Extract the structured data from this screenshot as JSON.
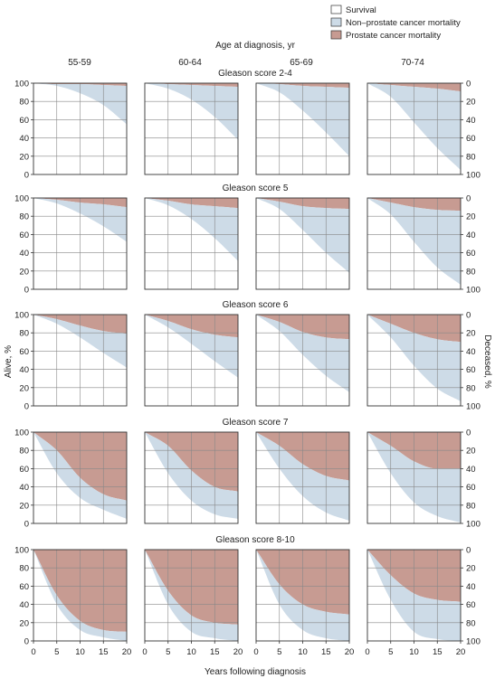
{
  "legend": [
    {
      "label": "Survival",
      "color": "#ffffff"
    },
    {
      "label": "Non–prostate cancer mortality",
      "color": "#cddbe7"
    },
    {
      "label": "Prostate cancer mortality",
      "color": "#c79b92"
    }
  ],
  "column_header": "Age at diagnosis, yr",
  "age_groups": [
    "55-59",
    "60-64",
    "65-69",
    "70-74"
  ],
  "y_left_label": "Alive, %",
  "y_right_label": "Deceased, %",
  "x_label": "Years following diagnosis",
  "row_titles": [
    "Gleason score 2-4",
    "Gleason score 5",
    "Gleason score 6",
    "Gleason score 7",
    "Gleason score 8-10"
  ],
  "colors": {
    "survival": "#ffffff",
    "non_prostate": "#cddbe7",
    "prostate": "#c79b92",
    "grid": "#888888",
    "frame": "#333333"
  },
  "chart_data": {
    "type": "area",
    "layout": "small multiples: rows = Gleason score, columns = age at diagnosis",
    "x": [
      0,
      5,
      10,
      15,
      20
    ],
    "xticks": [
      0,
      5,
      10,
      15,
      20
    ],
    "xlim": [
      0,
      20
    ],
    "yticks_left": [
      0,
      20,
      40,
      60,
      80,
      100
    ],
    "yticks_right": [
      100,
      80,
      60,
      40,
      20,
      0
    ],
    "ylim": [
      0,
      100
    ],
    "grid": true,
    "stacking": "bottom = survival %, middle = non-prostate cancer mortality, top = prostate cancer mortality",
    "panels": [
      {
        "row": "Gleason score 2-4",
        "column": "55-59",
        "survival": [
          100,
          97,
          89,
          76,
          55
        ],
        "alive_or_other_death": [
          100,
          99,
          99,
          98,
          97
        ]
      },
      {
        "row": "Gleason score 2-4",
        "column": "60-64",
        "survival": [
          100,
          94,
          82,
          63,
          38
        ],
        "alive_or_other_death": [
          100,
          99,
          98,
          97,
          96
        ]
      },
      {
        "row": "Gleason score 2-4",
        "column": "65-69",
        "survival": [
          100,
          90,
          70,
          46,
          20
        ],
        "alive_or_other_death": [
          100,
          99,
          97,
          96,
          95
        ]
      },
      {
        "row": "Gleason score 2-4",
        "column": "70-74",
        "survival": [
          100,
          85,
          57,
          29,
          5
        ],
        "alive_or_other_death": [
          100,
          98,
          96,
          94,
          91
        ]
      },
      {
        "row": "Gleason score 5",
        "column": "55-59",
        "survival": [
          100,
          94,
          83,
          69,
          52
        ],
        "alive_or_other_death": [
          100,
          98,
          95,
          93,
          90
        ]
      },
      {
        "row": "Gleason score 5",
        "column": "60-64",
        "survival": [
          100,
          92,
          77,
          56,
          31
        ],
        "alive_or_other_death": [
          100,
          97,
          93,
          91,
          89
        ]
      },
      {
        "row": "Gleason score 5",
        "column": "65-69",
        "survival": [
          100,
          88,
          65,
          40,
          18
        ],
        "alive_or_other_death": [
          100,
          96,
          91,
          89,
          88
        ]
      },
      {
        "row": "Gleason score 5",
        "column": "70-74",
        "survival": [
          100,
          82,
          52,
          24,
          5
        ],
        "alive_or_other_death": [
          100,
          95,
          90,
          87,
          86
        ]
      },
      {
        "row": "Gleason score 6",
        "column": "55-59",
        "survival": [
          100,
          90,
          75,
          58,
          42
        ],
        "alive_or_other_death": [
          100,
          95,
          88,
          82,
          79
        ]
      },
      {
        "row": "Gleason score 6",
        "column": "60-64",
        "survival": [
          100,
          86,
          68,
          49,
          31
        ],
        "alive_or_other_death": [
          100,
          93,
          84,
          78,
          75
        ]
      },
      {
        "row": "Gleason score 6",
        "column": "65-69",
        "survival": [
          100,
          82,
          56,
          33,
          15
        ],
        "alive_or_other_death": [
          100,
          92,
          81,
          75,
          73
        ]
      },
      {
        "row": "Gleason score 6",
        "column": "70-74",
        "survival": [
          100,
          75,
          44,
          19,
          5
        ],
        "alive_or_other_death": [
          100,
          90,
          80,
          73,
          70
        ]
      },
      {
        "row": "Gleason score 7",
        "column": "55-59",
        "survival": [
          100,
          55,
          28,
          15,
          5
        ],
        "alive_or_other_death": [
          100,
          80,
          50,
          32,
          25
        ]
      },
      {
        "row": "Gleason score 7",
        "column": "60-64",
        "survival": [
          100,
          55,
          25,
          10,
          5
        ],
        "alive_or_other_death": [
          100,
          85,
          58,
          40,
          35
        ]
      },
      {
        "row": "Gleason score 7",
        "column": "65-69",
        "survival": [
          100,
          60,
          30,
          12,
          3
        ],
        "alive_or_other_death": [
          100,
          85,
          65,
          52,
          47
        ]
      },
      {
        "row": "Gleason score 7",
        "column": "70-74",
        "survival": [
          100,
          55,
          23,
          8,
          1
        ],
        "alive_or_other_death": [
          100,
          85,
          68,
          60,
          60
        ]
      },
      {
        "row": "Gleason score 8-10",
        "column": "55-59",
        "survival": [
          100,
          40,
          12,
          4,
          0
        ],
        "alive_or_other_death": [
          100,
          50,
          22,
          12,
          10
        ]
      },
      {
        "row": "Gleason score 8-10",
        "column": "60-64",
        "survival": [
          100,
          40,
          10,
          3,
          0
        ],
        "alive_or_other_death": [
          100,
          55,
          28,
          20,
          18
        ]
      },
      {
        "row": "Gleason score 8-10",
        "column": "65-69",
        "survival": [
          100,
          40,
          12,
          3,
          0
        ],
        "alive_or_other_death": [
          100,
          62,
          40,
          32,
          29
        ]
      },
      {
        "row": "Gleason score 8-10",
        "column": "70-74",
        "survival": [
          100,
          45,
          10,
          2,
          0
        ],
        "alive_or_other_death": [
          100,
          72,
          52,
          45,
          43
        ]
      }
    ]
  }
}
